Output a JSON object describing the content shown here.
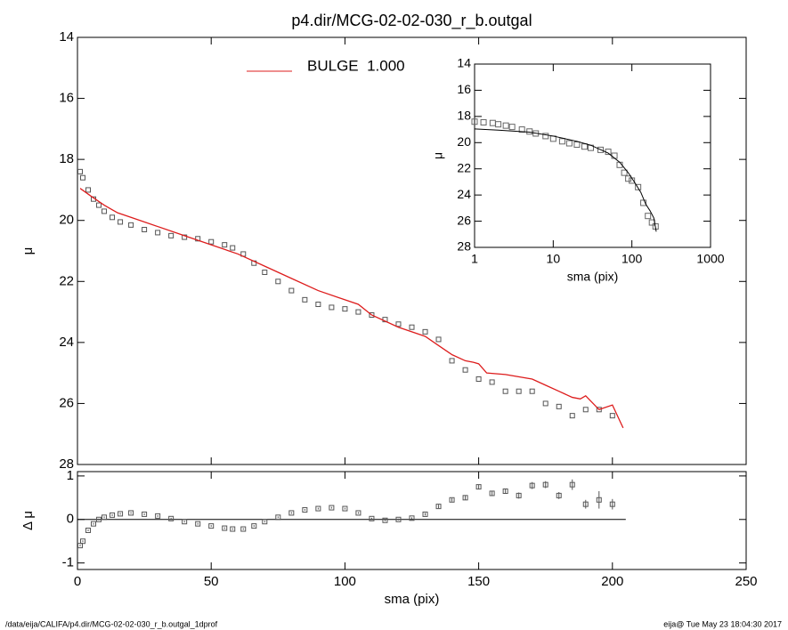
{
  "footer": {
    "left": "/data/eija/CALIFA/p4.dir/MCG-02-02-030_r_b.outgal_1dprof",
    "right": "eija@  Tue May 23 18:04:30 2017"
  },
  "chart_data": [
    {
      "type": "scatter",
      "title": "p4.dir/MCG-02-02-030_r_b.outgal",
      "ylabel": "μ",
      "xlim": [
        0,
        250
      ],
      "xticks": [
        0,
        50,
        100,
        150,
        200,
        250
      ],
      "xtick_labels": false,
      "ylim": [
        28,
        14
      ],
      "yticks": [
        14,
        16,
        18,
        20,
        22,
        24,
        26,
        28
      ],
      "series": [
        {
          "type": "points",
          "color": "#555555",
          "x": [
            1,
            2,
            4,
            6,
            8,
            10,
            13,
            16,
            20,
            25,
            30,
            35,
            40,
            45,
            50,
            55,
            58,
            62,
            66,
            70,
            75,
            80,
            85,
            90,
            95,
            100,
            105,
            110,
            115,
            120,
            125,
            130,
            135,
            140,
            145,
            150,
            155,
            160,
            165,
            170,
            175,
            180,
            185,
            190,
            195,
            200
          ],
          "values": [
            18.4,
            18.6,
            19.0,
            19.3,
            19.5,
            19.7,
            19.9,
            20.05,
            20.15,
            20.3,
            20.4,
            20.5,
            20.55,
            20.6,
            20.7,
            20.8,
            20.9,
            21.1,
            21.4,
            21.7,
            22.0,
            22.3,
            22.6,
            22.75,
            22.85,
            22.9,
            23.0,
            23.1,
            23.25,
            23.4,
            23.5,
            23.65,
            23.9,
            24.6,
            24.9,
            25.2,
            25.3,
            25.6,
            25.6,
            25.6,
            26.0,
            26.1,
            26.4,
            26.2,
            26.2,
            26.4
          ]
        },
        {
          "type": "line",
          "name": "BULGE  1.000",
          "color": "#dd1c1c",
          "x": [
            1,
            5,
            10,
            15,
            20,
            30,
            40,
            50,
            60,
            70,
            80,
            90,
            100,
            105,
            110,
            120,
            130,
            135,
            140,
            145,
            148,
            150,
            153,
            160,
            170,
            175,
            180,
            185,
            188,
            190,
            195,
            200,
            204
          ],
          "values": [
            18.95,
            19.2,
            19.5,
            19.75,
            19.9,
            20.2,
            20.5,
            20.8,
            21.1,
            21.5,
            21.9,
            22.3,
            22.6,
            22.75,
            23.1,
            23.5,
            23.8,
            24.1,
            24.4,
            24.6,
            24.65,
            24.7,
            25.0,
            25.05,
            25.2,
            25.4,
            25.6,
            25.8,
            25.85,
            25.75,
            26.2,
            26.05,
            26.8
          ]
        }
      ]
    },
    {
      "type": "scatter",
      "xlabel": "sma (pix)",
      "ylabel": "μ",
      "log_x": true,
      "xlim": [
        1,
        1000
      ],
      "xticks": [
        1,
        10,
        100,
        1000
      ],
      "ylim": [
        28,
        14
      ],
      "yticks": [
        14,
        16,
        18,
        20,
        22,
        24,
        26,
        28
      ],
      "series": [
        {
          "type": "points",
          "color": "#666666",
          "x": [
            1,
            1.3,
            1.7,
            2,
            2.5,
            3,
            4,
            5,
            6,
            8,
            10,
            13,
            16,
            20,
            25,
            30,
            40,
            50,
            60,
            70,
            80,
            90,
            100,
            120,
            140,
            160,
            180,
            200
          ],
          "values": [
            18.4,
            18.45,
            18.5,
            18.6,
            18.7,
            18.8,
            19.0,
            19.15,
            19.3,
            19.5,
            19.7,
            19.9,
            20.05,
            20.15,
            20.3,
            20.4,
            20.55,
            20.7,
            21.0,
            21.7,
            22.3,
            22.75,
            22.9,
            23.4,
            24.6,
            25.6,
            26.1,
            26.4
          ]
        },
        {
          "type": "line",
          "color": "#000000",
          "x": [
            1,
            2,
            5,
            10,
            20,
            30,
            50,
            70,
            90,
            110,
            130,
            150,
            170,
            190,
            204
          ],
          "values": [
            18.95,
            19.05,
            19.2,
            19.5,
            19.9,
            20.2,
            20.8,
            21.5,
            22.3,
            23.1,
            23.8,
            24.7,
            25.2,
            25.75,
            26.8
          ]
        }
      ]
    },
    {
      "type": "scatter",
      "xlabel": "sma (pix)",
      "ylabel": "Δ μ",
      "xlim": [
        0,
        250
      ],
      "xticks": [
        0,
        50,
        100,
        150,
        200,
        250
      ],
      "ylim": [
        -1.15,
        1.1
      ],
      "yticks": [
        -1,
        0,
        1
      ],
      "reference_line": {
        "y": 0,
        "x": [
          0,
          205
        ]
      },
      "series": [
        {
          "type": "points",
          "color": "#555555",
          "x": [
            1,
            2,
            4,
            6,
            8,
            10,
            13,
            16,
            20,
            25,
            30,
            35,
            40,
            45,
            50,
            55,
            58,
            62,
            66,
            70,
            75,
            80,
            85,
            90,
            95,
            100,
            105,
            110,
            115,
            120,
            125,
            130,
            135,
            140,
            145,
            150,
            155,
            160,
            165,
            170,
            175,
            180,
            185,
            190,
            195,
            200
          ],
          "values": [
            -0.6,
            -0.5,
            -0.25,
            -0.1,
            0.0,
            0.05,
            0.1,
            0.13,
            0.15,
            0.12,
            0.08,
            0.02,
            -0.05,
            -0.1,
            -0.15,
            -0.2,
            -0.22,
            -0.22,
            -0.15,
            -0.05,
            0.05,
            0.15,
            0.22,
            0.25,
            0.27,
            0.25,
            0.15,
            0.02,
            -0.02,
            0.0,
            0.03,
            0.12,
            0.3,
            0.45,
            0.5,
            0.75,
            0.6,
            0.65,
            0.55,
            0.78,
            0.8,
            0.55,
            0.8,
            0.35,
            0.45,
            0.35
          ],
          "errors": [
            0.02,
            0.02,
            0.02,
            0.02,
            0.02,
            0.02,
            0.02,
            0.02,
            0.02,
            0.02,
            0.02,
            0.02,
            0.02,
            0.02,
            0.02,
            0.02,
            0.02,
            0.02,
            0.02,
            0.02,
            0.02,
            0.02,
            0.02,
            0.02,
            0.02,
            0.02,
            0.02,
            0.02,
            0.02,
            0.02,
            0.02,
            0.03,
            0.04,
            0.04,
            0.05,
            0.05,
            0.06,
            0.06,
            0.07,
            0.08,
            0.08,
            0.08,
            0.12,
            0.1,
            0.2,
            0.12
          ]
        }
      ]
    }
  ]
}
